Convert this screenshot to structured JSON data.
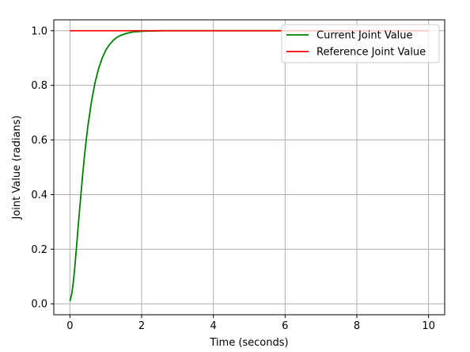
{
  "chart_data": {
    "type": "line",
    "title": "",
    "xlabel": "Time (seconds)",
    "ylabel": "Joint Value (radians)",
    "xlim": [
      -0.45,
      10.45
    ],
    "ylim": [
      -0.04,
      1.04
    ],
    "x_ticks": [
      0,
      2,
      4,
      6,
      8,
      10
    ],
    "x_tick_labels": [
      "0",
      "2",
      "4",
      "6",
      "8",
      "10"
    ],
    "y_ticks": [
      0.0,
      0.2,
      0.4,
      0.6,
      0.8,
      1.0
    ],
    "y_tick_labels": [
      "0.0",
      "0.2",
      "0.4",
      "0.6",
      "0.8",
      "1.0"
    ],
    "grid": true,
    "legend_position": "top-right",
    "series": [
      {
        "name": "Current Joint Value",
        "color": "#008000",
        "x": [
          0.0,
          0.05,
          0.1,
          0.15,
          0.2,
          0.25,
          0.3,
          0.35,
          0.4,
          0.45,
          0.5,
          0.6,
          0.7,
          0.8,
          0.9,
          1.0,
          1.1,
          1.2,
          1.3,
          1.4,
          1.5,
          1.6,
          1.7,
          1.8,
          1.9,
          2.0,
          2.2,
          2.4,
          2.6,
          2.8,
          3.0,
          3.5,
          4.0,
          5.0,
          6.0,
          7.0,
          8.0,
          9.0,
          10.0
        ],
        "y": [
          0.01,
          0.035,
          0.085,
          0.155,
          0.235,
          0.315,
          0.39,
          0.465,
          0.535,
          0.595,
          0.65,
          0.74,
          0.81,
          0.862,
          0.9,
          0.929,
          0.949,
          0.964,
          0.975,
          0.982,
          0.987,
          0.991,
          0.994,
          0.996,
          0.997,
          0.998,
          0.999,
          0.9995,
          1.0,
          1.0,
          1.0,
          1.0,
          1.0,
          1.0,
          1.0,
          1.0,
          1.0,
          1.0,
          1.0
        ]
      },
      {
        "name": "Reference Joint Value",
        "color": "#ff0000",
        "x": [
          0.0,
          10.0
        ],
        "y": [
          1.0,
          1.0
        ]
      }
    ]
  }
}
